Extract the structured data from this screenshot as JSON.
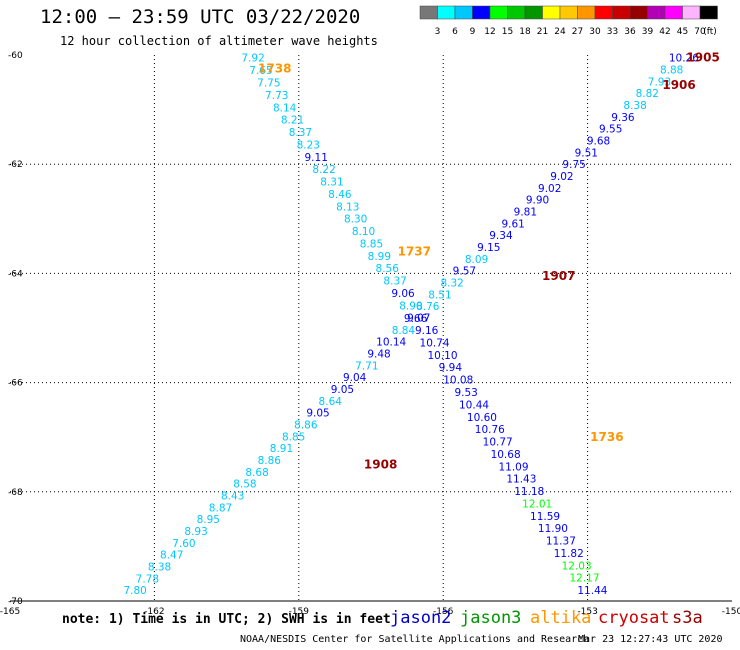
{
  "header": {
    "title": "12:00 – 23:59 UTC 03/22/2020",
    "subtitle": "12 hour collection of altimeter wave heights"
  },
  "colorbar": {
    "colors": [
      "#777777",
      "#00ffff",
      "#00c8ff",
      "#0000ff",
      "#00ff00",
      "#00c800",
      "#009600",
      "#ffff00",
      "#ffc800",
      "#ff9600",
      "#ff0000",
      "#c80000",
      "#960000",
      "#b400b4",
      "#ff00ff",
      "#ffb4ff",
      "#000000"
    ],
    "labels": [
      "3",
      "6",
      "9",
      "12",
      "15",
      "18",
      "21",
      "24",
      "27",
      "30",
      "33",
      "36",
      "39",
      "42",
      "45",
      "70"
    ],
    "unit": "(ft)"
  },
  "footer": {
    "note": "note: 1) Time is in UTC; 2) SWH is in feet",
    "credit": "NOAA/NESDIS Center for Satellite Applications and Research",
    "timestamp": "Mar 23 12:27:43 UTC 2020"
  },
  "missions": [
    {
      "name": "jason2",
      "color": "#0000cc"
    },
    {
      "name": "jason3",
      "color": "#009600"
    },
    {
      "name": "altika",
      "color": "#ff9600"
    },
    {
      "name": "cryosat",
      "color": "#cc0000"
    },
    {
      "name": "s3a",
      "color": "#960000"
    }
  ],
  "chart_data": {
    "type": "scatter",
    "xlim": [
      -165,
      -150
    ],
    "ylim": [
      -70,
      -60
    ],
    "x_ticks": [
      -165,
      -162,
      -159,
      -156,
      -153,
      -150
    ],
    "y_ticks": [
      -60,
      -62,
      -64,
      -66,
      -68,
      -70
    ],
    "grid": true,
    "pass_labels": [
      {
        "text": "1738",
        "lon": -159.5,
        "lat": -60.25,
        "color": "#ff9600"
      },
      {
        "text": "1737",
        "lon": -156.6,
        "lat": -63.6,
        "color": "#ff9600"
      },
      {
        "text": "1736",
        "lon": -152.6,
        "lat": -67.0,
        "color": "#ff9600"
      },
      {
        "text": "1905",
        "lon": -150.6,
        "lat": -60.05,
        "color": "#960000"
      },
      {
        "text": "1906",
        "lon": -151.1,
        "lat": -60.55,
        "color": "#960000"
      },
      {
        "text": "1907",
        "lon": -153.6,
        "lat": -64.05,
        "color": "#960000"
      },
      {
        "text": "1908",
        "lon": -157.3,
        "lat": -67.5,
        "color": "#960000"
      }
    ],
    "tracks": [
      {
        "pass": "1738-1736",
        "lon_start": -159.95,
        "lat_start": -60.05,
        "lon_end": -152.9,
        "lat_end": -69.8,
        "values": [
          {
            "v": "7.92",
            "c": "#00c8ff"
          },
          {
            "v": "7.65",
            "c": "#00c8ff"
          },
          {
            "v": "7.75",
            "c": "#00c8ff"
          },
          {
            "v": "7.73",
            "c": "#00c8ff"
          },
          {
            "v": "8.14",
            "c": "#00c8ff"
          },
          {
            "v": "8.21",
            "c": "#00c8ff"
          },
          {
            "v": "8.37",
            "c": "#00c8ff"
          },
          {
            "v": "8.23",
            "c": "#00c8ff"
          },
          {
            "v": "9.11",
            "c": "#0000ff"
          },
          {
            "v": "8.22",
            "c": "#00c8ff"
          },
          {
            "v": "8.31",
            "c": "#00c8ff"
          },
          {
            "v": "8.46",
            "c": "#00c8ff"
          },
          {
            "v": "8.13",
            "c": "#00c8ff"
          },
          {
            "v": "8.30",
            "c": "#00c8ff"
          },
          {
            "v": "8.10",
            "c": "#00c8ff"
          },
          {
            "v": "8.85",
            "c": "#00c8ff"
          },
          {
            "v": "8.99",
            "c": "#00c8ff"
          },
          {
            "v": "8.56",
            "c": "#00c8ff"
          },
          {
            "v": "8.37",
            "c": "#00c8ff"
          },
          {
            "v": "9.06",
            "c": "#0000ff"
          },
          {
            "v": "8.90",
            "c": "#00c8ff"
          },
          {
            "v": "9.07",
            "c": "#0000ff"
          },
          {
            "v": "9.16",
            "c": "#0000ff"
          },
          {
            "v": "10.74",
            "c": "#0000ff"
          },
          {
            "v": "10.10",
            "c": "#0000ff"
          },
          {
            "v": "9.94",
            "c": "#0000ff"
          },
          {
            "v": "10.08",
            "c": "#0000ff"
          },
          {
            "v": "9.53",
            "c": "#0000ff"
          },
          {
            "v": "10.44",
            "c": "#0000ff"
          },
          {
            "v": "10.60",
            "c": "#0000ff"
          },
          {
            "v": "10.76",
            "c": "#0000ff"
          },
          {
            "v": "10.77",
            "c": "#0000ff"
          },
          {
            "v": "10.68",
            "c": "#0000ff"
          },
          {
            "v": "11.09",
            "c": "#0000ff"
          },
          {
            "v": "11.43",
            "c": "#0000ff"
          },
          {
            "v": "11.18",
            "c": "#0000ff"
          },
          {
            "v": "12.01",
            "c": "#00ff00"
          },
          {
            "v": "11.59",
            "c": "#0000ff"
          },
          {
            "v": "11.90",
            "c": "#0000ff"
          },
          {
            "v": "11.37",
            "c": "#0000ff"
          },
          {
            "v": "11.82",
            "c": "#0000ff"
          },
          {
            "v": "12.03",
            "c": "#00ff00"
          },
          {
            "v": "12.17",
            "c": "#00ff00"
          },
          {
            "v": "11.44",
            "c": "#0000ff"
          }
        ]
      },
      {
        "pass": "1908-1905",
        "lon_start": -162.4,
        "lat_start": -69.8,
        "lon_end": -151.0,
        "lat_end": -60.05,
        "values": [
          {
            "v": "7.80",
            "c": "#00c8ff"
          },
          {
            "v": "7.78",
            "c": "#00c8ff"
          },
          {
            "v": "8.38",
            "c": "#00c8ff"
          },
          {
            "v": "8.47",
            "c": "#00c8ff"
          },
          {
            "v": "7.60",
            "c": "#00c8ff"
          },
          {
            "v": "8.93",
            "c": "#00c8ff"
          },
          {
            "v": "8.95",
            "c": "#00c8ff"
          },
          {
            "v": "8.87",
            "c": "#00c8ff"
          },
          {
            "v": "8.43",
            "c": "#00c8ff"
          },
          {
            "v": "8.58",
            "c": "#00c8ff"
          },
          {
            "v": "8.68",
            "c": "#00c8ff"
          },
          {
            "v": "8.86",
            "c": "#00c8ff"
          },
          {
            "v": "8.91",
            "c": "#00c8ff"
          },
          {
            "v": "8.85",
            "c": "#00c8ff"
          },
          {
            "v": "8.86",
            "c": "#00c8ff"
          },
          {
            "v": "9.05",
            "c": "#0000ff"
          },
          {
            "v": "8.64",
            "c": "#00c8ff"
          },
          {
            "v": "9.05",
            "c": "#0000ff"
          },
          {
            "v": "9.04",
            "c": "#0000ff"
          },
          {
            "v": "7.71",
            "c": "#00c8ff"
          },
          {
            "v": "9.48",
            "c": "#0000ff"
          },
          {
            "v": "10.14",
            "c": "#0000ff"
          },
          {
            "v": "8.84",
            "c": "#00c8ff"
          },
          {
            "v": "9.66",
            "c": "#0000ff"
          },
          {
            "v": "8.76",
            "c": "#00c8ff"
          },
          {
            "v": "8.51",
            "c": "#00c8ff"
          },
          {
            "v": "8.32",
            "c": "#00c8ff"
          },
          {
            "v": "9.57",
            "c": "#0000ff"
          },
          {
            "v": "8.09",
            "c": "#00c8ff"
          },
          {
            "v": "9.15",
            "c": "#0000ff"
          },
          {
            "v": "9.34",
            "c": "#0000ff"
          },
          {
            "v": "9.61",
            "c": "#0000ff"
          },
          {
            "v": "9.81",
            "c": "#0000ff"
          },
          {
            "v": "9.90",
            "c": "#0000ff"
          },
          {
            "v": "9.02",
            "c": "#0000ff"
          },
          {
            "v": "9.02",
            "c": "#0000ff"
          },
          {
            "v": "9.75",
            "c": "#0000ff"
          },
          {
            "v": "9.51",
            "c": "#0000ff"
          },
          {
            "v": "9.68",
            "c": "#0000ff"
          },
          {
            "v": "9.55",
            "c": "#0000ff"
          },
          {
            "v": "9.36",
            "c": "#0000ff"
          },
          {
            "v": "8.38",
            "c": "#00c8ff"
          },
          {
            "v": "8.82",
            "c": "#00c8ff"
          },
          {
            "v": "7.93",
            "c": "#00c8ff"
          },
          {
            "v": "8.88",
            "c": "#00c8ff"
          },
          {
            "v": "10.26",
            "c": "#0000ff"
          }
        ]
      }
    ]
  }
}
